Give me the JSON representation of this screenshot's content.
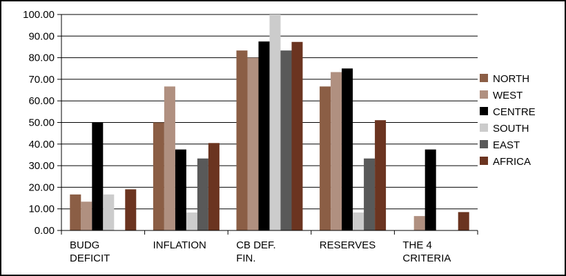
{
  "chart_data": {
    "type": "bar",
    "categories": [
      [
        "BUDG",
        "DEFICIT"
      ],
      [
        "INFLATION"
      ],
      [
        "CB DEF.",
        "FIN."
      ],
      [
        "RESERVES"
      ],
      [
        "THE 4",
        "CRITERIA"
      ]
    ],
    "series": [
      {
        "name": "NORTH",
        "color": "#8B5E45",
        "values": [
          16.67,
          50.0,
          83.33,
          66.67,
          0.0
        ]
      },
      {
        "name": "WEST",
        "color": "#B09080",
        "values": [
          13.33,
          66.67,
          80.0,
          73.33,
          6.67
        ]
      },
      {
        "name": "CENTRE",
        "color": "#000000",
        "values": [
          50.0,
          37.5,
          87.5,
          75.0,
          37.5
        ]
      },
      {
        "name": "SOUTH",
        "color": "#CCCCCC",
        "values": [
          16.67,
          8.33,
          100.0,
          8.33,
          0.0
        ]
      },
      {
        "name": "EAST",
        "color": "#595959",
        "values": [
          0.0,
          33.33,
          83.33,
          33.33,
          0.0
        ]
      },
      {
        "name": "AFRICA",
        "color": "#6B3420",
        "values": [
          19.05,
          40.48,
          87.3,
          51.06,
          8.51
        ]
      }
    ],
    "ylim": [
      0,
      100
    ],
    "yticks": [
      "0.00",
      "10.00",
      "20.00",
      "30.00",
      "40.00",
      "50.00",
      "60.00",
      "70.00",
      "80.00",
      "90.00",
      "100.00"
    ],
    "grid": true,
    "legend": "right",
    "title": "",
    "xlabel": "",
    "ylabel": ""
  }
}
